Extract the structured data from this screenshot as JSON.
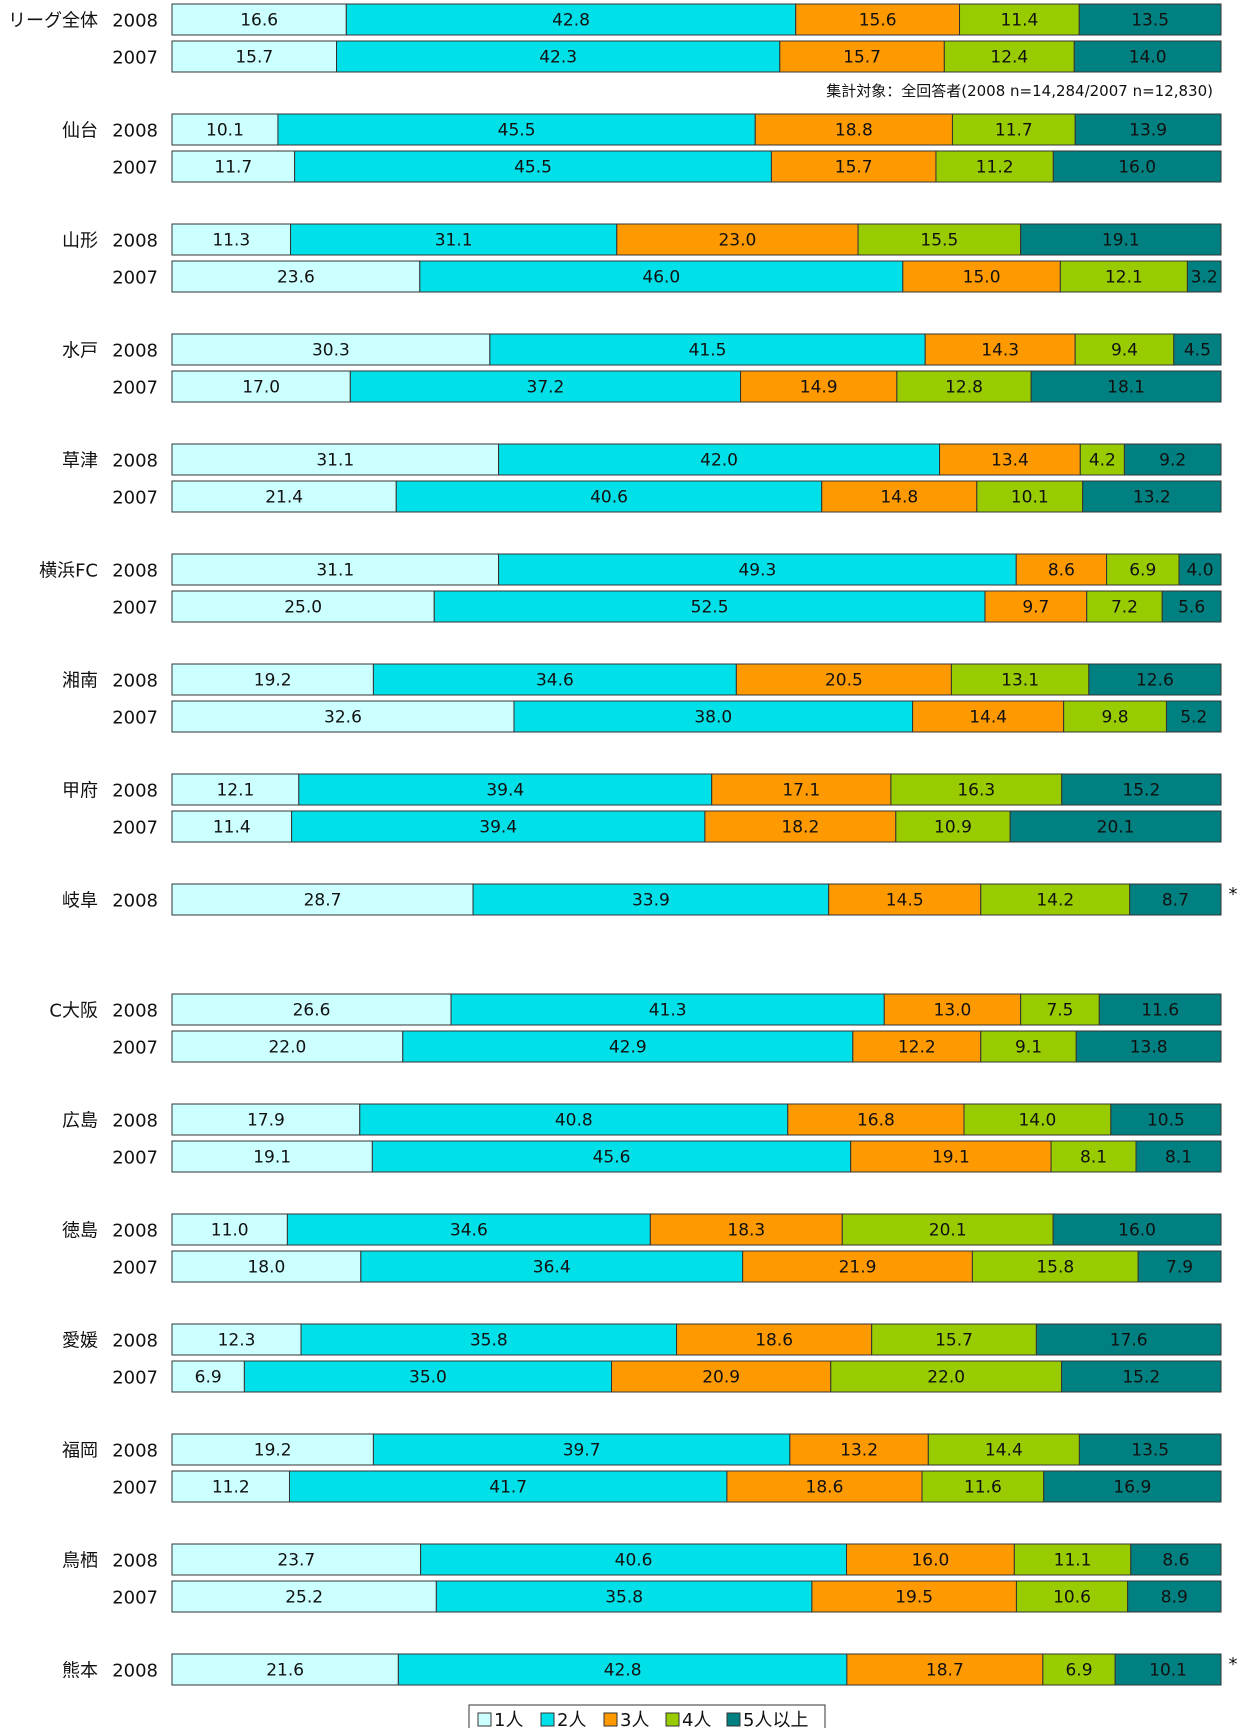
{
  "chart_data": {
    "type": "bar",
    "orientation": "horizontal",
    "stacked": true,
    "percent_stacked": true,
    "grid": false,
    "legend_position": "bottom",
    "note": "集計対象：全回答者(2008 n=14,284/2007 n=12,830)",
    "legend": [
      {
        "label": "1人",
        "color": "#ccffff"
      },
      {
        "label": "2人",
        "color": "#00e0e8"
      },
      {
        "label": "3人",
        "color": "#ff9900"
      },
      {
        "label": "4人",
        "color": "#99cc00"
      },
      {
        "label": "5人以上",
        "color": "#008080"
      }
    ],
    "groups": [
      {
        "name": "リーグ全体",
        "rows": [
          {
            "year": "2008",
            "values": [
              16.6,
              42.8,
              15.6,
              11.4,
              13.5
            ]
          },
          {
            "year": "2007",
            "values": [
              15.7,
              42.3,
              15.7,
              12.4,
              14.0
            ]
          }
        ]
      },
      {
        "name": "仙台",
        "rows": [
          {
            "year": "2008",
            "values": [
              10.1,
              45.5,
              18.8,
              11.7,
              13.9
            ]
          },
          {
            "year": "2007",
            "values": [
              11.7,
              45.5,
              15.7,
              11.2,
              16.0
            ]
          }
        ]
      },
      {
        "name": "山形",
        "rows": [
          {
            "year": "2008",
            "values": [
              11.3,
              31.1,
              23.0,
              15.5,
              19.1
            ]
          },
          {
            "year": "2007",
            "values": [
              23.6,
              46.0,
              15.0,
              12.1,
              3.2
            ]
          }
        ]
      },
      {
        "name": "水戸",
        "rows": [
          {
            "year": "2008",
            "values": [
              30.3,
              41.5,
              14.3,
              9.4,
              4.5
            ]
          },
          {
            "year": "2007",
            "values": [
              17.0,
              37.2,
              14.9,
              12.8,
              18.1
            ]
          }
        ]
      },
      {
        "name": "草津",
        "rows": [
          {
            "year": "2008",
            "values": [
              31.1,
              42.0,
              13.4,
              4.2,
              9.2
            ]
          },
          {
            "year": "2007",
            "values": [
              21.4,
              40.6,
              14.8,
              10.1,
              13.2
            ]
          }
        ]
      },
      {
        "name": "横浜FC",
        "rows": [
          {
            "year": "2008",
            "values": [
              31.1,
              49.3,
              8.6,
              6.9,
              4.0
            ]
          },
          {
            "year": "2007",
            "values": [
              25.0,
              52.5,
              9.7,
              7.2,
              5.6
            ]
          }
        ]
      },
      {
        "name": "湘南",
        "rows": [
          {
            "year": "2008",
            "values": [
              19.2,
              34.6,
              20.5,
              13.1,
              12.6
            ]
          },
          {
            "year": "2007",
            "values": [
              32.6,
              38.0,
              14.4,
              9.8,
              5.2
            ]
          }
        ]
      },
      {
        "name": "甲府",
        "rows": [
          {
            "year": "2008",
            "values": [
              12.1,
              39.4,
              17.1,
              16.3,
              15.2
            ]
          },
          {
            "year": "2007",
            "values": [
              11.4,
              39.4,
              18.2,
              10.9,
              20.1
            ]
          }
        ]
      },
      {
        "name": "岐阜",
        "mark": "*",
        "rows": [
          {
            "year": "2008",
            "values": [
              28.7,
              33.9,
              14.5,
              14.2,
              8.7
            ]
          }
        ]
      },
      {
        "name": "C大阪",
        "rows": [
          {
            "year": "2008",
            "values": [
              26.6,
              41.3,
              13.0,
              7.5,
              11.6
            ]
          },
          {
            "year": "2007",
            "values": [
              22.0,
              42.9,
              12.2,
              9.1,
              13.8
            ]
          }
        ]
      },
      {
        "name": "広島",
        "rows": [
          {
            "year": "2008",
            "values": [
              17.9,
              40.8,
              16.8,
              14.0,
              10.5
            ]
          },
          {
            "year": "2007",
            "values": [
              19.1,
              45.6,
              19.1,
              8.1,
              8.1
            ]
          }
        ]
      },
      {
        "name": "徳島",
        "rows": [
          {
            "year": "2008",
            "values": [
              11.0,
              34.6,
              18.3,
              20.1,
              16.0
            ]
          },
          {
            "year": "2007",
            "values": [
              18.0,
              36.4,
              21.9,
              15.8,
              7.9
            ]
          }
        ]
      },
      {
        "name": "愛媛",
        "rows": [
          {
            "year": "2008",
            "values": [
              12.3,
              35.8,
              18.6,
              15.7,
              17.6
            ]
          },
          {
            "year": "2007",
            "values": [
              6.9,
              35.0,
              20.9,
              22.0,
              15.2
            ]
          }
        ]
      },
      {
        "name": "福岡",
        "rows": [
          {
            "year": "2008",
            "values": [
              19.2,
              39.7,
              13.2,
              14.4,
              13.5
            ]
          },
          {
            "year": "2007",
            "values": [
              11.2,
              41.7,
              18.6,
              11.6,
              16.9
            ]
          }
        ]
      },
      {
        "name": "鳥栖",
        "rows": [
          {
            "year": "2008",
            "values": [
              23.7,
              40.6,
              16.0,
              11.1,
              8.6
            ]
          },
          {
            "year": "2007",
            "values": [
              25.2,
              35.8,
              19.5,
              10.6,
              8.9
            ]
          }
        ]
      },
      {
        "name": "熊本",
        "mark": "*",
        "rows": [
          {
            "year": "2008",
            "values": [
              21.6,
              42.8,
              18.7,
              6.9,
              10.1
            ]
          }
        ]
      }
    ]
  }
}
